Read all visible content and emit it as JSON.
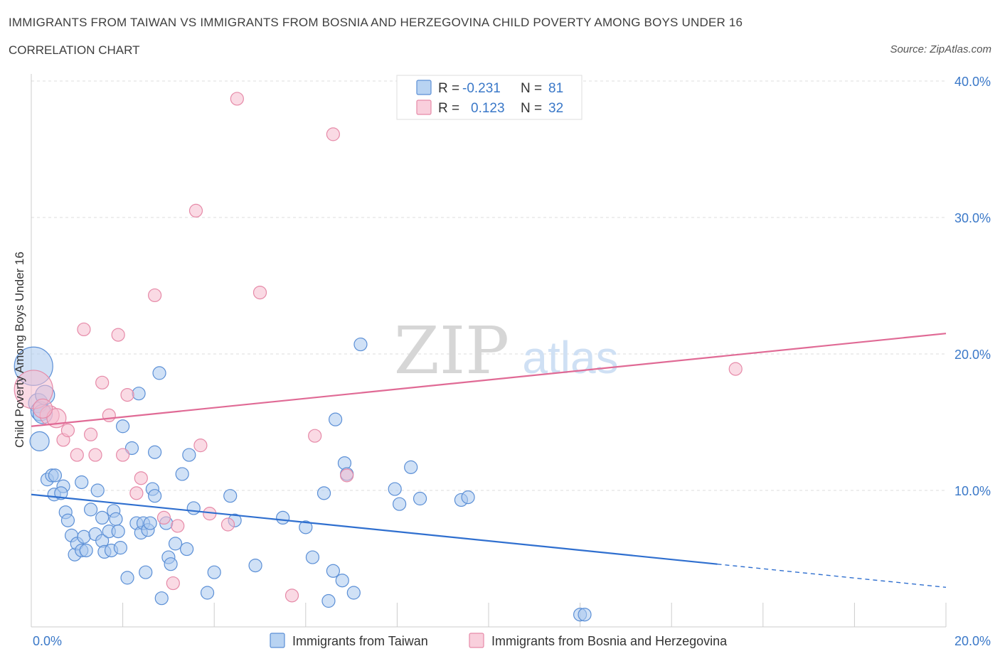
{
  "header": {
    "title": "IMMIGRANTS FROM TAIWAN VS IMMIGRANTS FROM BOSNIA AND HERZEGOVINA CHILD POVERTY AMONG BOYS UNDER 16",
    "subtitle": "CORRELATION CHART",
    "source": "Source: ZipAtlas.com"
  },
  "watermark": {
    "zip": "ZIP",
    "atlas": "atlas"
  },
  "colors": {
    "blue_fill": "#a9c8ee",
    "blue_stroke": "#5b8fd6",
    "blue_line": "#2f6fcf",
    "pink_fill": "#f6bccd",
    "pink_stroke": "#e68aa8",
    "pink_line": "#e06a95",
    "axis_label": "#3a78c8",
    "grid": "#dddddd"
  },
  "legend_box": {
    "rows": [
      {
        "r_label": "R =",
        "r_value": "-0.231",
        "n_label": "N =",
        "n_value": "81",
        "color": "blue"
      },
      {
        "r_label": "R =",
        "r_value": "0.123",
        "n_label": "N =",
        "n_value": "32",
        "color": "pink"
      }
    ]
  },
  "bottom_legend": [
    {
      "label": "Immigrants from Taiwan",
      "color": "blue"
    },
    {
      "label": "Immigrants from Bosnia and Herzegovina",
      "color": "pink"
    }
  ],
  "chart_data": {
    "type": "scatter",
    "title": "IMMIGRANTS FROM TAIWAN VS IMMIGRANTS FROM BOSNIA AND HERZEGOVINA CHILD POVERTY AMONG BOYS UNDER 16",
    "xlabel": "",
    "ylabel": "Child Poverty Among Boys Under 16",
    "xlim": [
      0,
      20
    ],
    "ylim": [
      0,
      40
    ],
    "x_tick_labels": [
      "0.0%",
      "20.0%"
    ],
    "y_ticks": [
      10,
      20,
      30,
      40
    ],
    "y_tick_labels": [
      "10.0%",
      "20.0%",
      "30.0%",
      "40.0%"
    ],
    "grid": "horizontal dashed",
    "legend_placement": "top-center",
    "series": [
      {
        "name": "Immigrants from Taiwan",
        "color": "blue",
        "R": -0.231,
        "N": 81,
        "trend": {
          "x": [
            0,
            15
          ],
          "y": [
            9.7,
            4.6
          ],
          "dashed_to": [
            20,
            2.9
          ]
        },
        "points": [
          [
            0.05,
            19.1,
            3
          ],
          [
            0.15,
            16.4,
            1.5
          ],
          [
            0.2,
            15.8,
            1.5
          ],
          [
            0.3,
            17.0,
            1.5
          ],
          [
            0.25,
            15.6,
            1.5
          ],
          [
            0.18,
            13.6,
            1.5
          ],
          [
            0.35,
            10.8,
            1
          ],
          [
            0.45,
            11.1,
            1
          ],
          [
            0.52,
            11.1,
            1
          ],
          [
            0.5,
            9.7,
            1
          ],
          [
            0.7,
            10.3,
            1
          ],
          [
            0.65,
            9.8,
            1
          ],
          [
            0.75,
            8.4,
            1
          ],
          [
            0.8,
            7.8,
            1
          ],
          [
            0.88,
            6.7,
            1
          ],
          [
            0.95,
            5.3,
            1
          ],
          [
            1.0,
            6.1,
            1
          ],
          [
            1.1,
            5.6,
            1
          ],
          [
            1.15,
            6.6,
            1
          ],
          [
            1.2,
            5.6,
            1
          ],
          [
            1.1,
            10.6,
            1
          ],
          [
            1.3,
            8.6,
            1
          ],
          [
            1.45,
            10.0,
            1
          ],
          [
            1.4,
            6.8,
            1
          ],
          [
            1.55,
            6.3,
            1
          ],
          [
            1.55,
            8.0,
            1
          ],
          [
            1.6,
            5.5,
            1
          ],
          [
            1.7,
            7.0,
            1
          ],
          [
            1.75,
            5.6,
            1
          ],
          [
            1.8,
            8.5,
            1
          ],
          [
            1.85,
            7.9,
            1
          ],
          [
            1.9,
            7.0,
            1
          ],
          [
            1.95,
            5.8,
            1
          ],
          [
            2.0,
            14.7,
            1
          ],
          [
            2.1,
            3.6,
            1
          ],
          [
            2.2,
            13.1,
            1
          ],
          [
            2.3,
            7.6,
            1
          ],
          [
            2.35,
            17.1,
            1
          ],
          [
            2.4,
            6.9,
            1
          ],
          [
            2.45,
            7.6,
            1
          ],
          [
            2.5,
            4.0,
            1
          ],
          [
            2.55,
            7.1,
            1
          ],
          [
            2.6,
            7.6,
            1
          ],
          [
            2.65,
            10.1,
            1
          ],
          [
            2.7,
            9.6,
            1
          ],
          [
            2.8,
            18.6,
            1
          ],
          [
            2.85,
            2.1,
            1
          ],
          [
            2.95,
            7.6,
            1
          ],
          [
            3.0,
            5.1,
            1
          ],
          [
            3.05,
            4.6,
            1
          ],
          [
            3.15,
            6.1,
            1
          ],
          [
            3.3,
            11.2,
            1
          ],
          [
            3.4,
            5.7,
            1
          ],
          [
            3.45,
            12.6,
            1
          ],
          [
            3.55,
            8.7,
            1
          ],
          [
            3.85,
            2.5,
            1
          ],
          [
            4.0,
            4.0,
            1
          ],
          [
            4.35,
            9.6,
            1
          ],
          [
            4.45,
            7.8,
            1
          ],
          [
            4.9,
            4.5,
            1
          ],
          [
            5.5,
            8.0,
            1
          ],
          [
            6.0,
            7.3,
            1
          ],
          [
            6.15,
            5.1,
            1
          ],
          [
            6.4,
            9.8,
            1
          ],
          [
            6.5,
            1.9,
            1
          ],
          [
            6.6,
            4.1,
            1
          ],
          [
            6.65,
            15.2,
            1
          ],
          [
            6.8,
            3.4,
            1
          ],
          [
            6.85,
            12.0,
            1
          ],
          [
            6.9,
            11.2,
            1
          ],
          [
            7.05,
            2.5,
            1
          ],
          [
            7.2,
            20.7,
            1
          ],
          [
            7.95,
            10.1,
            1
          ],
          [
            8.05,
            9.0,
            1
          ],
          [
            8.3,
            11.7,
            1
          ],
          [
            8.5,
            9.4,
            1
          ],
          [
            9.4,
            9.3,
            1
          ],
          [
            9.55,
            9.5,
            1
          ],
          [
            12.0,
            0.9,
            1
          ],
          [
            12.1,
            0.9,
            1
          ],
          [
            2.7,
            12.8,
            1
          ]
        ]
      },
      {
        "name": "Immigrants from Bosnia and Herzegovina",
        "color": "pink",
        "R": 0.123,
        "N": 32,
        "trend": {
          "x": [
            0,
            20
          ],
          "y": [
            14.7,
            21.5
          ]
        },
        "points": [
          [
            0.05,
            17.4,
            3
          ],
          [
            0.4,
            15.5,
            1.5
          ],
          [
            0.55,
            15.3,
            1.5
          ],
          [
            0.7,
            13.7,
            1
          ],
          [
            0.8,
            14.4,
            1
          ],
          [
            1.0,
            12.6,
            1
          ],
          [
            1.15,
            21.8,
            1
          ],
          [
            1.3,
            14.1,
            1
          ],
          [
            1.4,
            12.6,
            1
          ],
          [
            1.55,
            17.9,
            1
          ],
          [
            1.7,
            15.5,
            1
          ],
          [
            1.9,
            21.4,
            1
          ],
          [
            2.0,
            12.6,
            1
          ],
          [
            2.1,
            17.0,
            1
          ],
          [
            2.3,
            9.8,
            1
          ],
          [
            2.4,
            10.9,
            1
          ],
          [
            2.7,
            24.3,
            1
          ],
          [
            2.9,
            8.0,
            1
          ],
          [
            3.1,
            3.2,
            1
          ],
          [
            3.2,
            7.4,
            1
          ],
          [
            3.6,
            30.5,
            1
          ],
          [
            3.7,
            13.3,
            1
          ],
          [
            3.9,
            8.3,
            1
          ],
          [
            4.3,
            7.5,
            1
          ],
          [
            4.5,
            38.7,
            1
          ],
          [
            5.0,
            24.5,
            1
          ],
          [
            5.7,
            2.3,
            1
          ],
          [
            6.2,
            14.0,
            1
          ],
          [
            6.6,
            36.1,
            1
          ],
          [
            6.9,
            11.1,
            1
          ],
          [
            15.4,
            18.9,
            1
          ],
          [
            0.25,
            16.0,
            1.5
          ]
        ]
      }
    ]
  }
}
